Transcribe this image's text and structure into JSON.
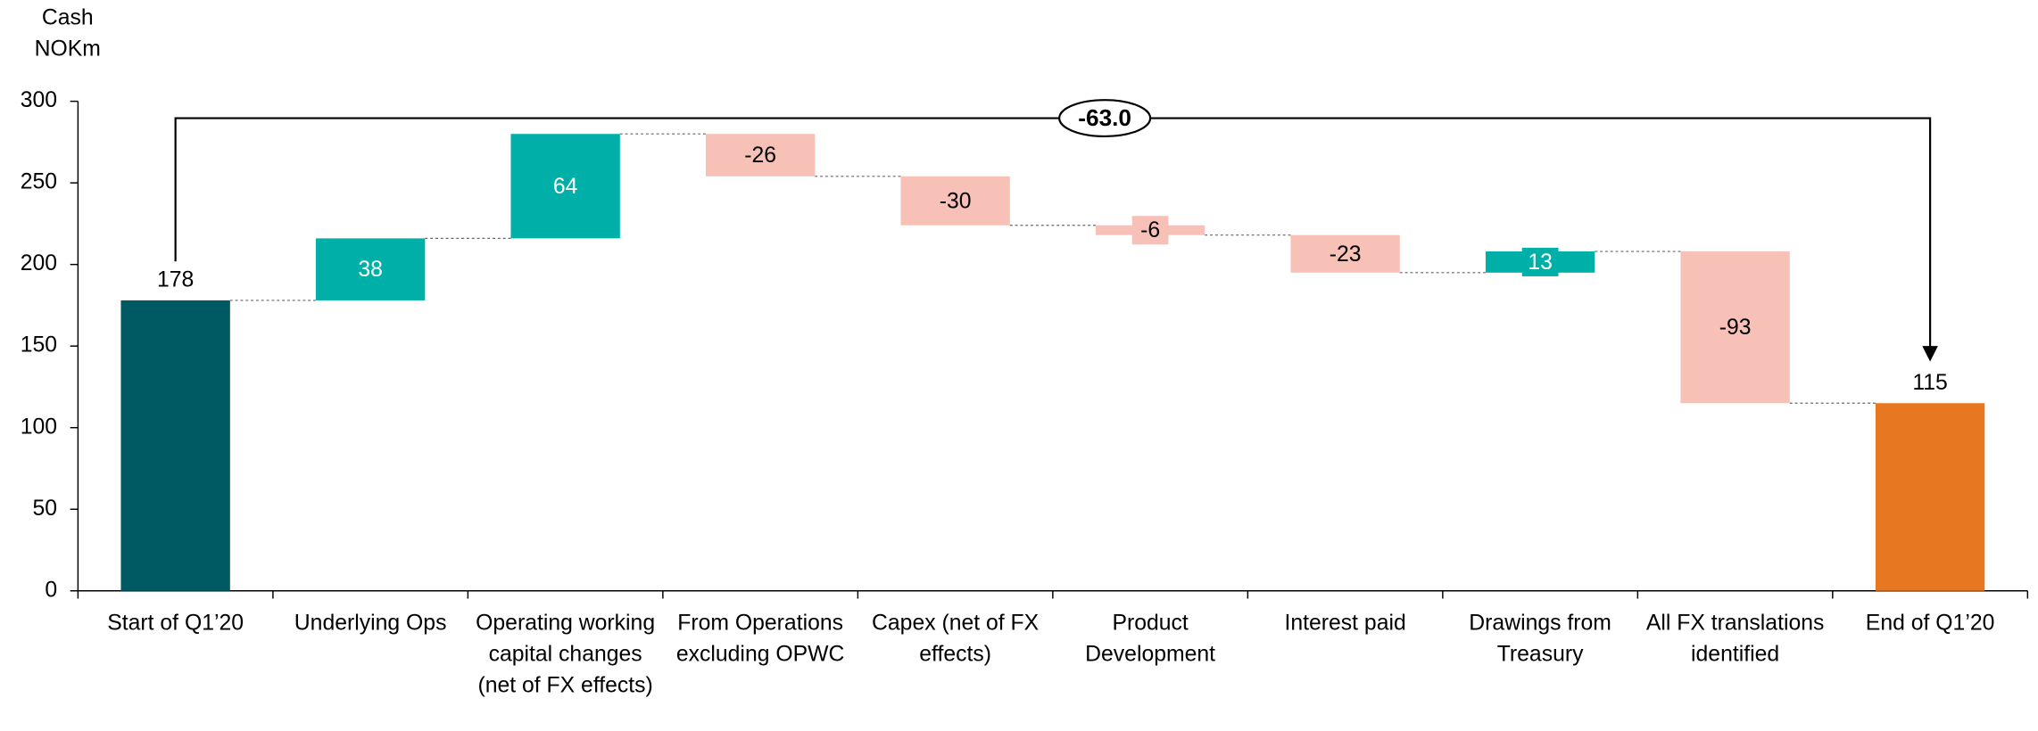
{
  "chart_data": {
    "type": "waterfall",
    "y_label": "Cash NOKm",
    "categories": [
      "Start of Q1’20",
      "Underlying Ops",
      "Operating working capital changes (net of FX effects)",
      "From Operations excluding OPWC",
      "Capex (net of FX effects)",
      "Product Development",
      "Interest paid",
      "Drawings from Treasury",
      "All FX translations identified",
      "End of Q1’20"
    ],
    "values": [
      178,
      38,
      64,
      -26,
      -30,
      -6,
      -23,
      13,
      -93,
      115
    ],
    "total_color": "#005a64",
    "increase_color": "#00b0a8",
    "decrease_color": "#f8c1b8",
    "end_color": "#e87722",
    "ylim": [
      0,
      300
    ],
    "yticks": [
      0,
      50,
      100,
      150,
      200,
      250,
      300
    ],
    "annotation": {
      "value": -63,
      "label": "-63.0"
    }
  }
}
